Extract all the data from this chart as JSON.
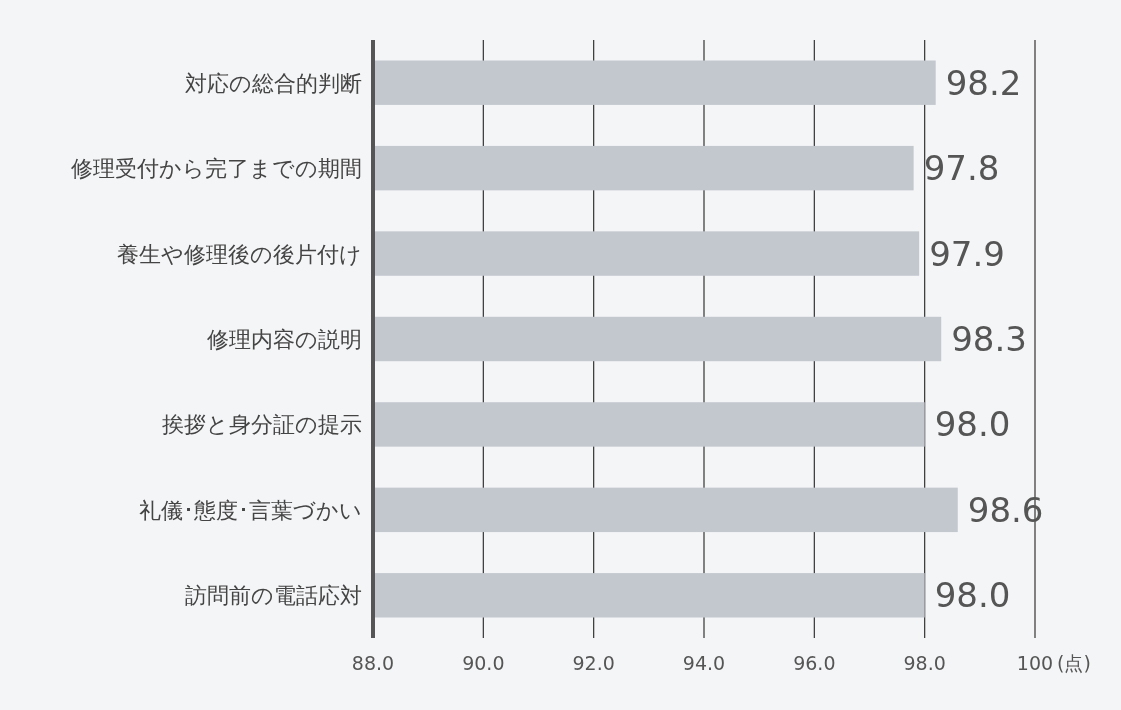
{
  "chart_data": {
    "type": "bar",
    "orientation": "horizontal",
    "categories": [
      "対応の総合的判断",
      "修理受付から完了までの期間",
      "養生や修理後の後片付け",
      "修理内容の説明",
      "挨拶と身分証の提示",
      "礼儀･態度･言葉づかい",
      "訪問前の電話応対"
    ],
    "values": [
      98.2,
      97.8,
      97.9,
      98.3,
      98.0,
      98.6,
      98.0
    ],
    "color": "#c3c8cf",
    "xlim": [
      88,
      100
    ],
    "xticks": [
      {
        "value": 88,
        "label": "88.0"
      },
      {
        "value": 90,
        "label": "90.0"
      },
      {
        "value": 92,
        "label": "92.0"
      },
      {
        "value": 94,
        "label": "94.0"
      },
      {
        "value": 96,
        "label": "96.0"
      },
      {
        "value": 98,
        "label": "98.0"
      },
      100
    ],
    "xlabel": "(点)",
    "grid": "x",
    "value_labels": [
      "98.2",
      "97.8",
      "97.9",
      "98.3",
      "98.0",
      "98.6",
      "98.0"
    ]
  }
}
